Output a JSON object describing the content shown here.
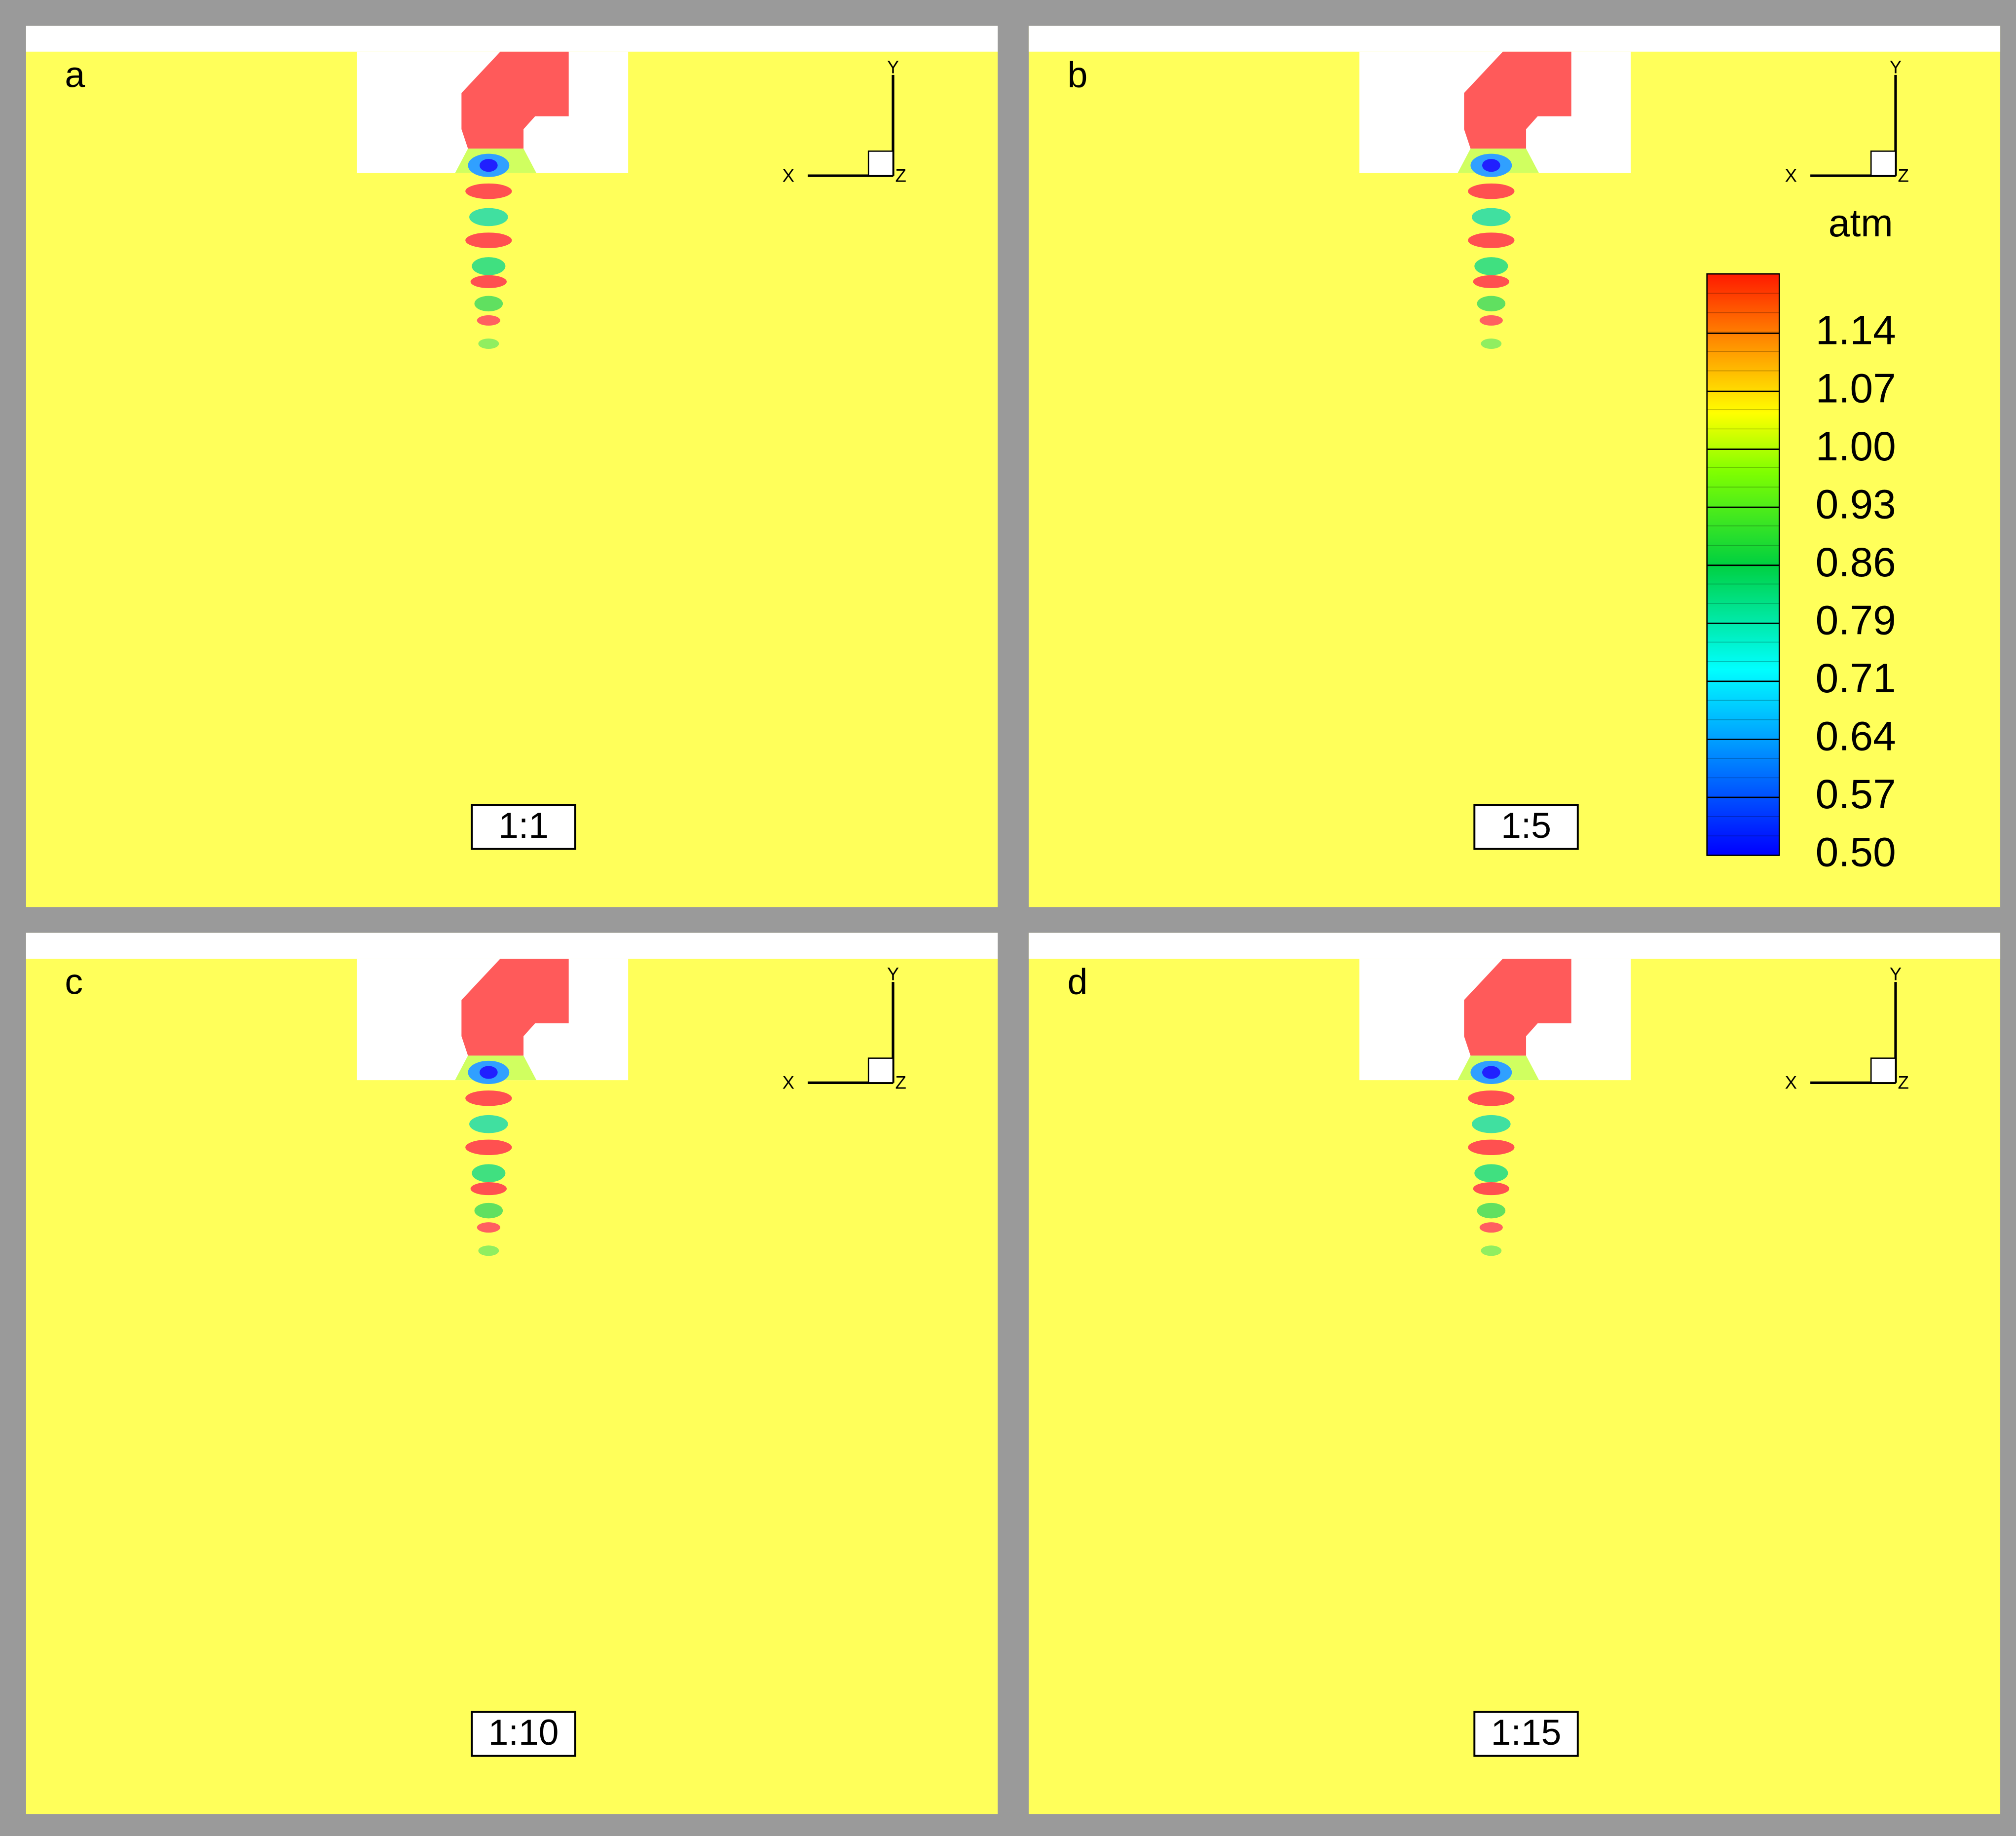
{
  "panels": [
    {
      "label": "a",
      "ratio": "1:1",
      "axes": {
        "x": "X",
        "y": "Y",
        "z": "Z"
      }
    },
    {
      "label": "b",
      "ratio": "1:5",
      "axes": {
        "x": "X",
        "y": "Y",
        "z": "Z"
      }
    },
    {
      "label": "c",
      "ratio": "1:10",
      "axes": {
        "x": "X",
        "y": "Y",
        "z": "Z"
      }
    },
    {
      "label": "d",
      "ratio": "1:15",
      "axes": {
        "x": "X",
        "y": "Y",
        "z": "Z"
      }
    }
  ],
  "colorbar": {
    "unit": "atm",
    "ticks": [
      "1.14",
      "1.07",
      "1.00",
      "0.93",
      "0.86",
      "0.79",
      "0.71",
      "0.64",
      "0.57",
      "0.50"
    ]
  }
}
